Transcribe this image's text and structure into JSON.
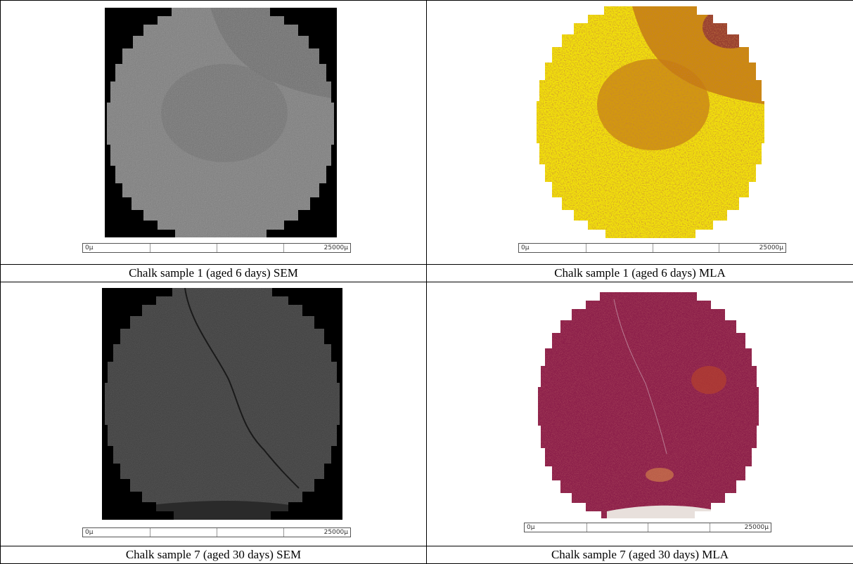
{
  "panels": [
    {
      "caption": "Chalk sample 1 (aged 6 days) SEM",
      "image_type": "SEM micrograph",
      "scale_start": "0µ",
      "scale_end": "25000µ"
    },
    {
      "caption": "Chalk sample 1 (aged 6 days) MLA",
      "image_type": "MLA mineral map",
      "scale_start": "0µ",
      "scale_end": "25000µ"
    },
    {
      "caption": "Chalk sample 7 (aged 30 days) SEM",
      "image_type": "SEM micrograph",
      "scale_start": "0µ",
      "scale_end": "25000µ"
    },
    {
      "caption": "Chalk sample 7 (aged 30 days) MLA",
      "image_type": "MLA mineral map",
      "scale_start": "0µ",
      "scale_end": "25000µ"
    }
  ],
  "colors": {
    "sem1_background": "#000000",
    "sem1_sample": "#7d7d7d",
    "mla1_primary": "#f2e20a",
    "mla1_secondary": "#c67a0e",
    "mla1_dark": "#8a2a3a",
    "sem7_background": "#000000",
    "sem7_sample": "#3c3c3c",
    "mla7_primary": "#8c1f4a",
    "mla7_secondary": "#b5402c",
    "mla7_rim": "#d9884a"
  }
}
